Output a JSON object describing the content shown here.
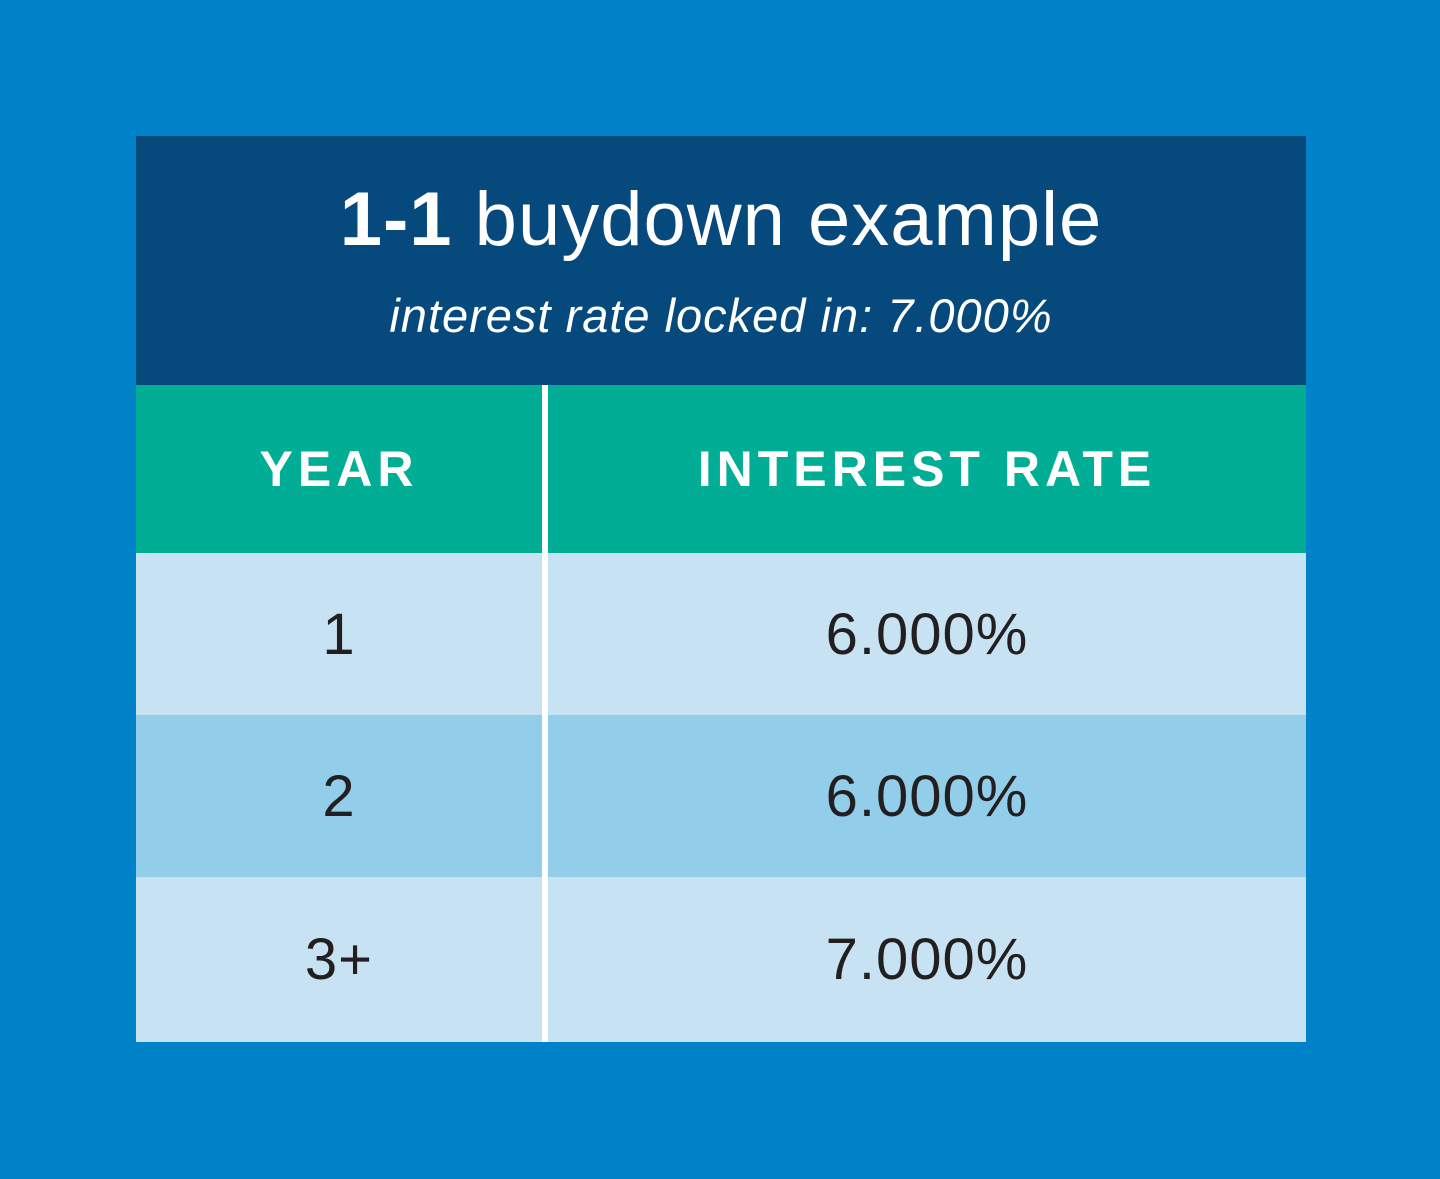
{
  "colors": {
    "page_background": "#0082C8",
    "header_background": "#06497D",
    "header_text": "#FFFFFF",
    "column_header_background": "#02AD96",
    "column_header_text": "#FFFFFF",
    "row_light_background": "#C7E2F2",
    "row_medium_background": "#92CEEA",
    "row_text": "#231F20",
    "divider": "#FFFFFF"
  },
  "header": {
    "title_bold": "1-1",
    "title_rest": "buydown example",
    "subtitle": "interest rate locked in: 7.000%"
  },
  "table": {
    "columns": [
      {
        "label": "YEAR"
      },
      {
        "label": "INTEREST RATE"
      }
    ],
    "rows": [
      {
        "year": "1",
        "rate": "6.000%"
      },
      {
        "year": "2",
        "rate": "6.000%"
      },
      {
        "year": "3+",
        "rate": "7.000%"
      }
    ]
  },
  "chart_data": {
    "type": "table",
    "title": "1-1 buydown example",
    "subtitle": "interest rate locked in: 7.000%",
    "columns": [
      "YEAR",
      "INTEREST RATE"
    ],
    "rows": [
      [
        "1",
        "6.000%"
      ],
      [
        "2",
        "6.000%"
      ],
      [
        "3+",
        "7.000%"
      ]
    ],
    "locked_rate_percent": 7.0,
    "year_rates_percent": [
      {
        "year": "1",
        "rate": 6.0
      },
      {
        "year": "2",
        "rate": 6.0
      },
      {
        "year": "3+",
        "rate": 7.0
      }
    ]
  }
}
